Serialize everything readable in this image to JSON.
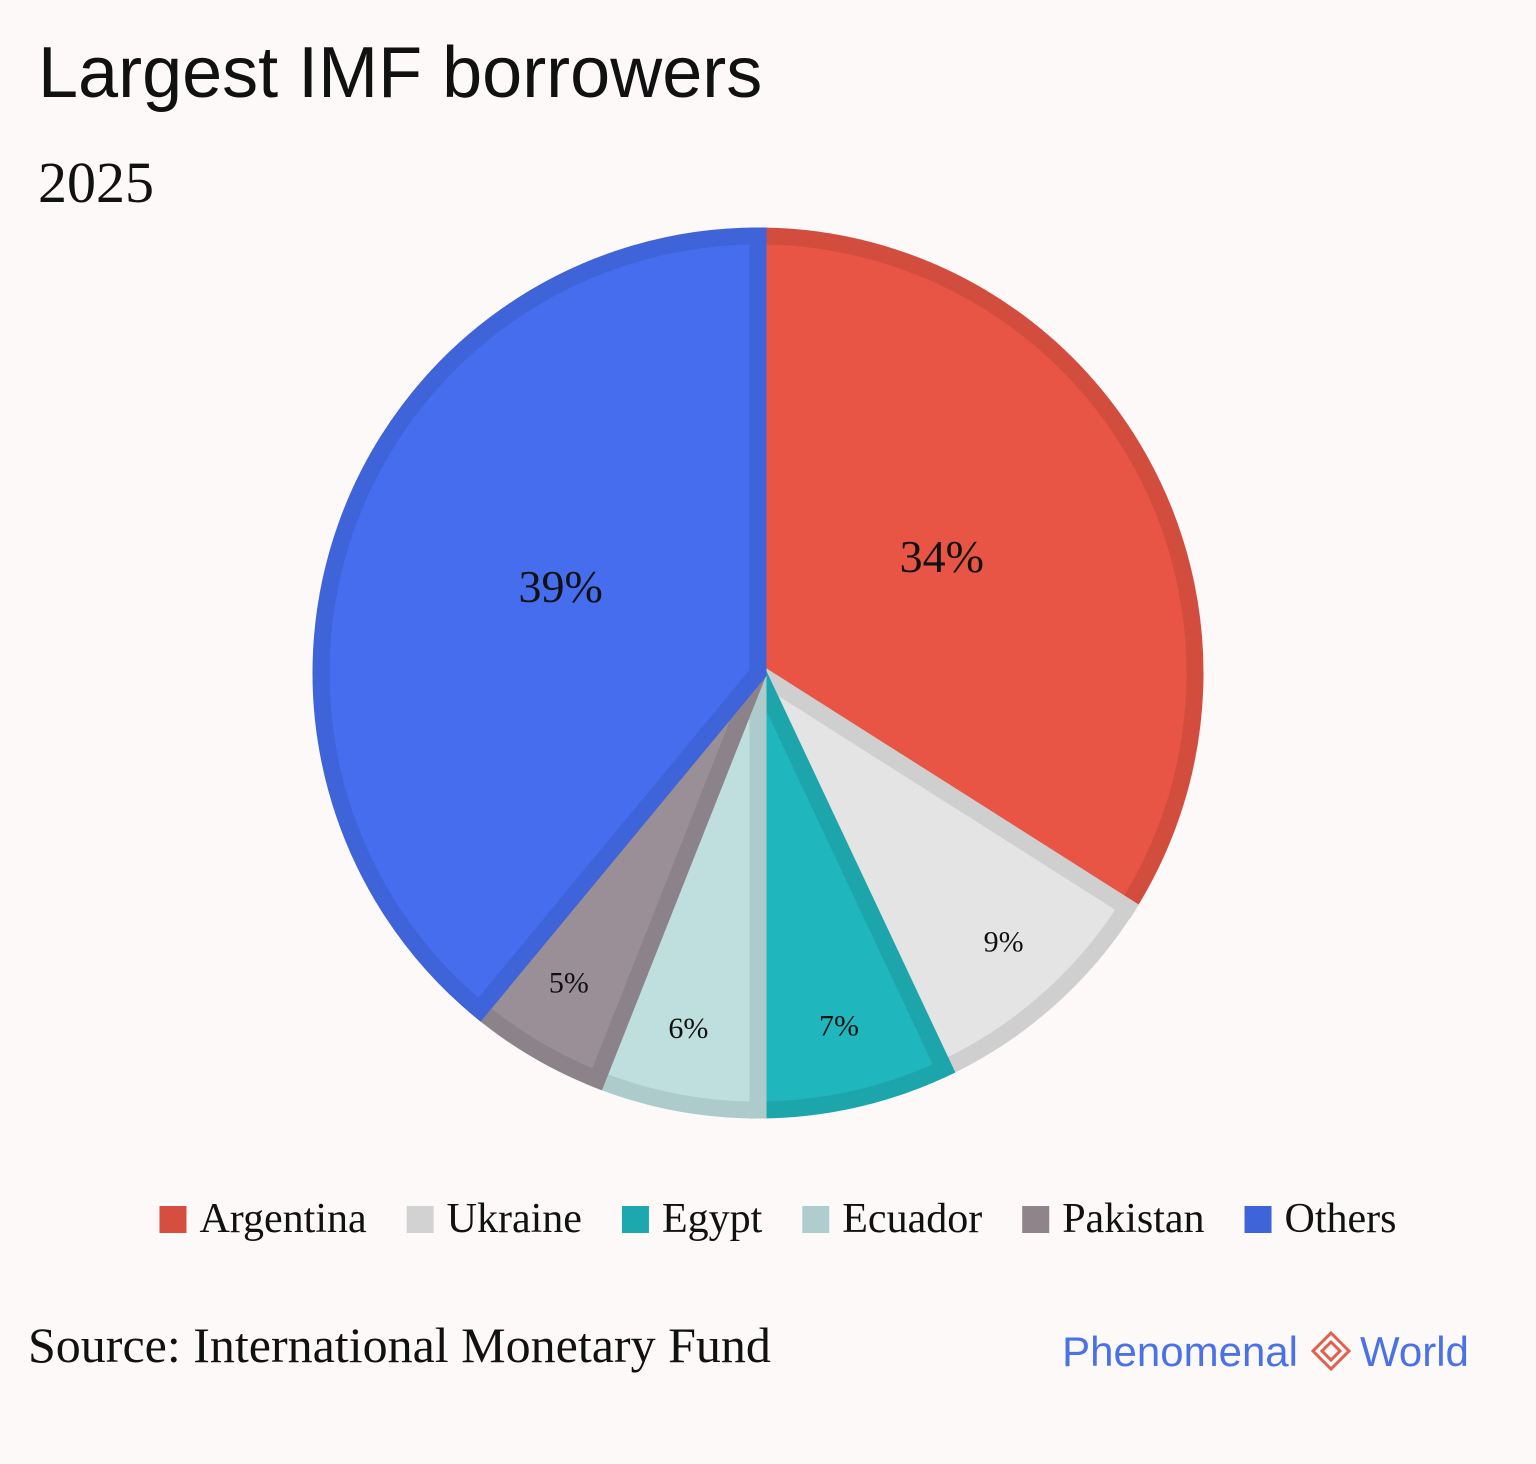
{
  "chart_data": {
    "type": "pie",
    "title": "Largest IMF borrowers",
    "subtitle": "2025",
    "categories": [
      "Argentina",
      "Ukraine",
      "Egypt",
      "Ecuador",
      "Pakistan",
      "Others"
    ],
    "values": [
      34,
      9,
      7,
      6,
      5,
      39
    ],
    "value_labels": [
      "34%",
      "9%",
      "7%",
      "6%",
      "5%",
      "39%"
    ],
    "colors": [
      "#e85544",
      "#e4e4e4",
      "#1fb6bd",
      "#bfdfdf",
      "#9a8f96",
      "#456ded"
    ],
    "legend": "bottom",
    "source": "Source: International Monetary Fund"
  },
  "logo": {
    "left": "Phenomenal",
    "right": "World"
  }
}
